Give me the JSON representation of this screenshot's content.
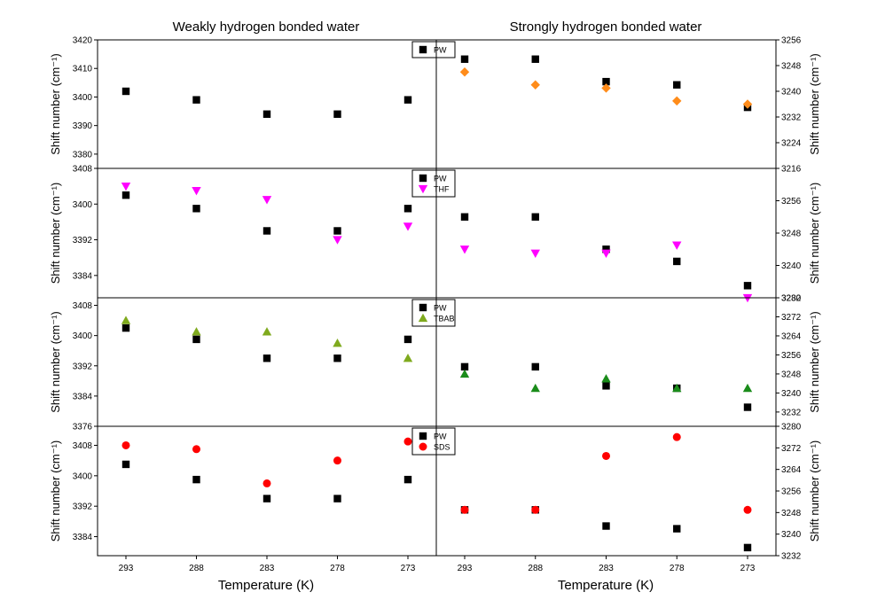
{
  "titles": {
    "left": "Weakly hydrogen bonded water",
    "right": "Strongly hydrogen bonded water"
  },
  "xlabel": "Temperature (K)",
  "ylabel": "Shift number (cm⁻¹)",
  "chart_data": {
    "type": "scatter",
    "categories": [
      "293",
      "288",
      "283",
      "278",
      "273"
    ],
    "panels": [
      {
        "row": 1,
        "side": "left",
        "ylim": [
          3375,
          3420
        ],
        "yticks": [
          3380,
          3390,
          3400,
          3410,
          3420
        ],
        "legend": [
          "PW"
        ],
        "series": [
          {
            "name": "PW",
            "marker": "square",
            "color": "#000000",
            "values": [
              3402,
              3399,
              3394,
              3394,
              3399
            ]
          }
        ]
      },
      {
        "row": 1,
        "side": "right",
        "ylim": [
          3216,
          3256
        ],
        "yticks": [
          3216,
          3224,
          3232,
          3240,
          3248,
          3256
        ],
        "series": [
          {
            "name": "PW",
            "marker": "square",
            "color": "#000000",
            "values": [
              3250,
              3250,
              3243,
              3242,
              3235
            ]
          },
          {
            "name": "",
            "marker": "diamond",
            "color": "#ff8c1a",
            "values": [
              3246,
              3242,
              3241,
              3237,
              3236
            ]
          }
        ]
      },
      {
        "row": 2,
        "side": "left",
        "ylim": [
          3379,
          3408
        ],
        "yticks": [
          3384,
          3392,
          3400,
          3408
        ],
        "legend": [
          "PW",
          "THF"
        ],
        "series": [
          {
            "name": "PW",
            "marker": "square",
            "color": "#000000",
            "values": [
              3402,
              3399,
              3394,
              3394,
              3399
            ]
          },
          {
            "name": "THF",
            "marker": "triangle-down",
            "color": "#ff00ff",
            "values": [
              3404,
              3403,
              3401,
              3392,
              3395
            ]
          }
        ]
      },
      {
        "row": 2,
        "side": "right",
        "ylim": [
          3232,
          3264
        ],
        "yticks": [
          3232,
          3240,
          3248,
          3256
        ],
        "series": [
          {
            "name": "PW",
            "marker": "square",
            "color": "#000000",
            "values": [
              3252,
              3252,
              3244,
              3241,
              3235
            ]
          },
          {
            "name": "THF",
            "marker": "triangle-down",
            "color": "#ff00ff",
            "values": [
              3244,
              3243,
              3243,
              3245,
              3232
            ]
          }
        ]
      },
      {
        "row": 3,
        "side": "left",
        "ylim": [
          3376,
          3410
        ],
        "yticks": [
          3376,
          3384,
          3392,
          3400,
          3408
        ],
        "legend": [
          "PW",
          "TBAB"
        ],
        "series": [
          {
            "name": "PW",
            "marker": "square",
            "color": "#000000",
            "values": [
              3402,
              3399,
              3394,
              3394,
              3399
            ]
          },
          {
            "name": "TBAB",
            "marker": "triangle-up",
            "color": "#7faa1e",
            "values": [
              3404,
              3401,
              3401,
              3398,
              3394
            ]
          }
        ]
      },
      {
        "row": 3,
        "side": "right",
        "ylim": [
          3226,
          3280
        ],
        "yticks": [
          3232,
          3240,
          3248,
          3256,
          3264,
          3272,
          3280
        ],
        "series": [
          {
            "name": "PW",
            "marker": "square",
            "color": "#000000",
            "values": [
              3251,
              3251,
              3243,
              3242,
              3234
            ]
          },
          {
            "name": "TBAB",
            "marker": "triangle-up",
            "color": "#1a8c1a",
            "values": [
              3248,
              3242,
              3246,
              3242,
              3242
            ]
          }
        ]
      },
      {
        "row": 4,
        "side": "left",
        "ylim": [
          3379,
          3413
        ],
        "yticks": [
          3384,
          3392,
          3400,
          3408
        ],
        "legend": [
          "PW",
          "SDS"
        ],
        "series": [
          {
            "name": "PW",
            "marker": "square",
            "color": "#000000",
            "values": [
              3403,
              3399,
              3394,
              3394,
              3399
            ]
          },
          {
            "name": "SDS",
            "marker": "circle",
            "color": "#ff0000",
            "values": [
              3408,
              3407,
              3398,
              3404,
              3409
            ]
          }
        ]
      },
      {
        "row": 4,
        "side": "right",
        "ylim": [
          3232,
          3280
        ],
        "yticks": [
          3232,
          3240,
          3248,
          3256,
          3264,
          3272,
          3280
        ],
        "series": [
          {
            "name": "PW",
            "marker": "square",
            "color": "#000000",
            "values": [
              3249,
              3249,
              3243,
              3242,
              3235
            ]
          },
          {
            "name": "SDS",
            "marker": "circle",
            "color": "#ff0000",
            "values": [
              3249,
              3249,
              3269,
              3276,
              3249
            ]
          }
        ]
      }
    ]
  }
}
